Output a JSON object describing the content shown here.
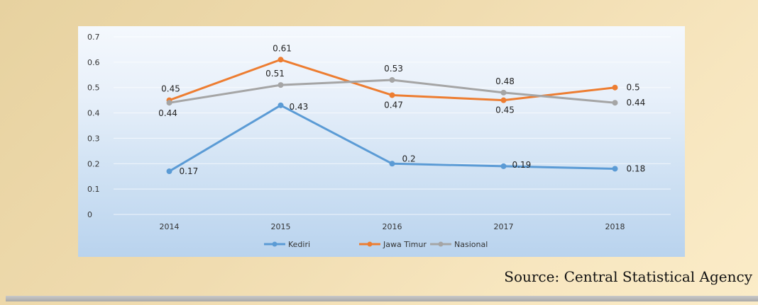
{
  "source_note": "Source: Central Statistical Agency",
  "colors": {
    "Kediri": "#5b9bd5",
    "Jawa Timur": "#ed7d31",
    "Nasional": "#a5a5a5"
  },
  "chart_data": {
    "type": "line",
    "x": [
      "2014",
      "2015",
      "2016",
      "2017",
      "2018"
    ],
    "ylim": [
      0,
      0.7
    ],
    "yticks": [
      "0",
      "0.1",
      "0.2",
      "0.3",
      "0.4",
      "0.5",
      "0.6",
      "0.7"
    ],
    "grid": true,
    "legend": "bottom",
    "series": [
      {
        "name": "Kediri",
        "values": [
          0.17,
          0.43,
          0.2,
          0.19,
          0.18
        ],
        "labels": [
          "0.17",
          "0.43",
          "0.2",
          "0.19",
          "0.18"
        ]
      },
      {
        "name": "Jawa Timur",
        "values": [
          0.45,
          0.61,
          0.47,
          0.45,
          0.5
        ],
        "labels": [
          "0.45",
          "0.61",
          "0.47",
          "0.45",
          "0.5"
        ]
      },
      {
        "name": "Nasional",
        "values": [
          0.44,
          0.51,
          0.53,
          0.48,
          0.44
        ],
        "labels": [
          "0.44",
          "0.51",
          "0.53",
          "0.48",
          "0.44"
        ]
      }
    ]
  }
}
